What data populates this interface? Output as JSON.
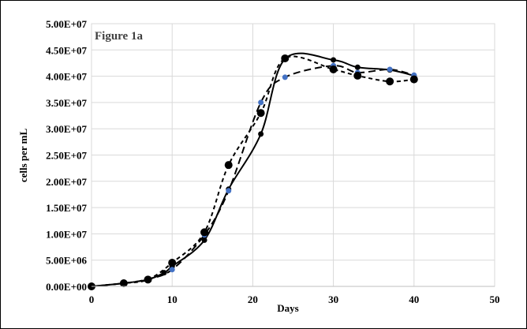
{
  "chart_data": {
    "type": "scatter",
    "title": "Figure 1a",
    "xlabel": "Days",
    "ylabel": "cells per mL",
    "xlim": [
      0,
      50
    ],
    "ylim": [
      0,
      50000000
    ],
    "x_ticks": [
      "0",
      "10",
      "20",
      "30",
      "40",
      "50"
    ],
    "y_ticks": [
      "0.00E+00",
      "5.00E+06",
      "1.00E+07",
      "1.50E+07",
      "2.00E+07",
      "2.50E+07",
      "3.00E+07",
      "3.50E+07",
      "4.00E+07",
      "4.50E+07",
      "5.00E+07"
    ],
    "grid": true,
    "legend": "none",
    "series": [
      {
        "line": "solid",
        "marker_color": "#000000",
        "marker_size": "small",
        "points": [
          [
            0,
            0
          ],
          [
            4,
            600000
          ],
          [
            7,
            1300000
          ],
          [
            9,
            2600000
          ],
          [
            10,
            3800000
          ],
          [
            14,
            8800000
          ],
          [
            17,
            18500000
          ],
          [
            21,
            29000000
          ],
          [
            24,
            43300000
          ],
          [
            30,
            43100000
          ],
          [
            33,
            41700000
          ],
          [
            37,
            41200000
          ],
          [
            40,
            40100000
          ]
        ]
      },
      {
        "line": "long-dash",
        "marker_color": "#4472c4",
        "marker_size": "small",
        "points": [
          [
            0,
            0
          ],
          [
            4,
            600000
          ],
          [
            7,
            1400000
          ],
          [
            10,
            3200000
          ],
          [
            14,
            9800000
          ],
          [
            17,
            18200000
          ],
          [
            21,
            35000000
          ],
          [
            24,
            39800000
          ],
          [
            30,
            42000000
          ],
          [
            33,
            40700000
          ],
          [
            37,
            41300000
          ],
          [
            40,
            40200000
          ]
        ]
      },
      {
        "line": "short-dash",
        "marker_color": "#000000",
        "marker_size": "large",
        "points": [
          [
            0,
            0
          ],
          [
            4,
            600000
          ],
          [
            7,
            1300000
          ],
          [
            10,
            4500000
          ],
          [
            14,
            10300000
          ],
          [
            17,
            23100000
          ],
          [
            21,
            33000000
          ],
          [
            24,
            43400000
          ],
          [
            30,
            41300000
          ],
          [
            33,
            40100000
          ],
          [
            37,
            39000000
          ],
          [
            40,
            39400000
          ]
        ]
      }
    ]
  }
}
